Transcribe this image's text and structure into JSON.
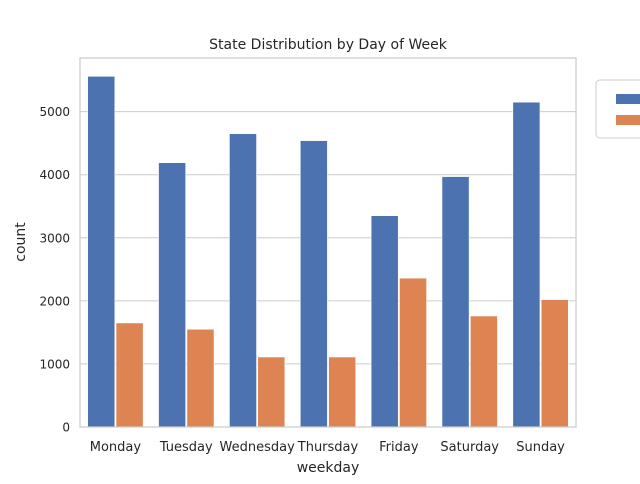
{
  "chart_data": {
    "type": "bar",
    "title": "State Distribution by Day of Week",
    "xlabel": "weekday",
    "ylabel": "count",
    "categories": [
      "Monday",
      "Tuesday",
      "Wednesday",
      "Thursday",
      "Friday",
      "Saturday",
      "Sunday"
    ],
    "series": [
      {
        "values": [
          5560,
          4190,
          4650,
          4540,
          3350,
          3970,
          5150
        ],
        "color": "#4c72b0"
      },
      {
        "values": [
          1650,
          1550,
          1110,
          1110,
          2360,
          1760,
          2020
        ],
        "color": "#dd8452"
      }
    ],
    "ylim": [
      0,
      5850
    ],
    "yticks": [
      0,
      1000,
      2000,
      3000,
      4000,
      5000
    ],
    "grid": true,
    "legend": {
      "placement": "outside-top-right"
    }
  }
}
